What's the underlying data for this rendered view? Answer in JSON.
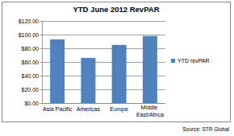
{
  "chart_data": {
    "type": "bar",
    "title": "YTD June 2012 RevPAR",
    "categories": [
      "Asia Pacific",
      "Americas",
      "Europe",
      "Middle East/Africa"
    ],
    "series": [
      {
        "name": "YTD revPAR",
        "color": "#4f81bd",
        "values": [
          93,
          66,
          85,
          98
        ]
      }
    ],
    "ylim": [
      0,
      120
    ],
    "yticks": [
      {
        "value": 0,
        "label": "$0.00"
      },
      {
        "value": 20,
        "label": "$20.00"
      },
      {
        "value": 40,
        "label": "$40.00"
      },
      {
        "value": 60,
        "label": "$60.00"
      },
      {
        "value": 80,
        "label": "$80.00"
      },
      {
        "value": 100,
        "label": "$100.00"
      },
      {
        "value": 120,
        "label": "$120.00"
      }
    ],
    "grid": true,
    "legend": "right",
    "source": "Source: STR Global"
  }
}
